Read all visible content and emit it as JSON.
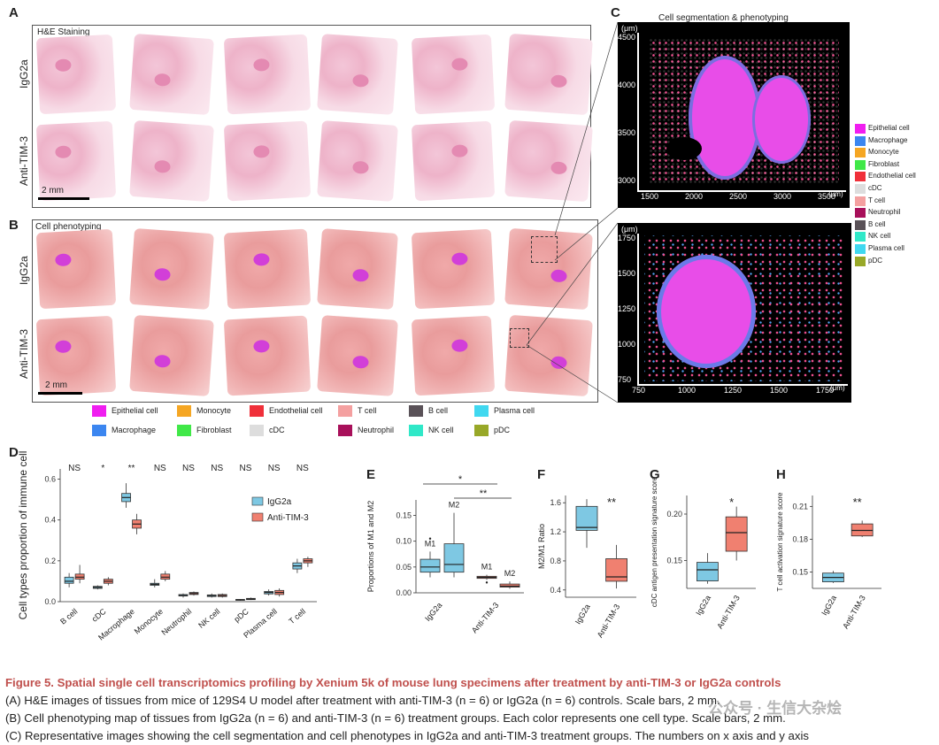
{
  "panels": {
    "A": {
      "label": "A",
      "title": "H&E Staining",
      "rows": [
        "IgG2a",
        "Anti-TIM-3"
      ],
      "scale": "2 mm"
    },
    "B": {
      "label": "B",
      "title": "Cell phenotyping",
      "rows": [
        "IgG2a",
        "Anti-TIM-3"
      ],
      "scale": "2 mm"
    },
    "C": {
      "label": "C",
      "title": "Cell segmentation & phenotyping",
      "top": {
        "unit": "(μm)",
        "xunit": "(μm)",
        "yticks": [
          "4500",
          "4000",
          "3500",
          "3000"
        ],
        "xticks": [
          "1500",
          "2000",
          "2500",
          "3000",
          "3500"
        ]
      },
      "bottom": {
        "unit": "(μm)",
        "xunit": "(μm)",
        "yticks": [
          "1750",
          "1500",
          "1250",
          "1000",
          "750"
        ],
        "xticks": [
          "750",
          "1000",
          "1250",
          "1500",
          "1750"
        ]
      },
      "legend": [
        "Epithelial cell",
        "Macrophage",
        "Monocyte",
        "Fibroblast",
        "Endothelial cell",
        "cDC",
        "T cell",
        "Neutrophil",
        "B cell",
        "NK cell",
        "Plasma cell",
        "pDC"
      ]
    },
    "D": {
      "label": "D"
    },
    "E": {
      "label": "E"
    },
    "F": {
      "label": "F"
    },
    "G": {
      "label": "G"
    },
    "H": {
      "label": "H"
    }
  },
  "cell_legend": [
    {
      "name": "Epithelial cell",
      "color": "#f01ef0"
    },
    {
      "name": "Monocyte",
      "color": "#f5a623"
    },
    {
      "name": "Endothelial cell",
      "color": "#f0303a"
    },
    {
      "name": "T cell",
      "color": "#f4a0a0"
    },
    {
      "name": "B cell",
      "color": "#5a5258"
    },
    {
      "name": "Plasma cell",
      "color": "#40d8f0"
    },
    {
      "name": "Macrophage",
      "color": "#3b86f0"
    },
    {
      "name": "Fibroblast",
      "color": "#40e848"
    },
    {
      "name": "cDC",
      "color": "#dddddd"
    },
    {
      "name": "Neutrophil",
      "color": "#a8105a"
    },
    {
      "name": "NK cell",
      "color": "#30e8c8"
    },
    {
      "name": "pDC",
      "color": "#98a828"
    }
  ],
  "colors": {
    "igg2a": "#7ec8e3",
    "anti": "#f08070",
    "caption_title": "#c0504d"
  },
  "chart_data": [
    {
      "panel": "D",
      "type": "box",
      "ylabel": "Cell types proportion of immune cell",
      "ylim": [
        0,
        0.65
      ],
      "yticks": [
        "0.0",
        "0.2",
        "0.4",
        "0.6"
      ],
      "categories": [
        "B cell",
        "cDC",
        "Macrophage",
        "Monocyte",
        "Neutrophil",
        "NK cell",
        "pDC",
        "Plasma cell",
        "T cell"
      ],
      "significance": [
        "NS",
        "*",
        "**",
        "NS",
        "NS",
        "NS",
        "NS",
        "NS",
        "NS"
      ],
      "legend": [
        "IgG2a",
        "Anti-TIM-3"
      ],
      "series": [
        {
          "name": "IgG2a",
          "boxes": [
            [
              0.07,
              0.09,
              0.1,
              0.12,
              0.14
            ],
            [
              0.06,
              0.065,
              0.07,
              0.075,
              0.08
            ],
            [
              0.46,
              0.49,
              0.51,
              0.53,
              0.58
            ],
            [
              0.07,
              0.08,
              0.085,
              0.09,
              0.11
            ],
            [
              0.02,
              0.028,
              0.03,
              0.035,
              0.04
            ],
            [
              0.02,
              0.025,
              0.03,
              0.033,
              0.04
            ],
            [
              0.005,
              0.007,
              0.009,
              0.011,
              0.013
            ],
            [
              0.03,
              0.038,
              0.045,
              0.05,
              0.06
            ],
            [
              0.14,
              0.16,
              0.175,
              0.19,
              0.21
            ]
          ]
        },
        {
          "name": "Anti-TIM-3",
          "boxes": [
            [
              0.09,
              0.11,
              0.12,
              0.135,
              0.18
            ],
            [
              0.08,
              0.09,
              0.1,
              0.11,
              0.12
            ],
            [
              0.33,
              0.36,
              0.38,
              0.4,
              0.43
            ],
            [
              0.1,
              0.11,
              0.12,
              0.135,
              0.15
            ],
            [
              0.03,
              0.035,
              0.04,
              0.045,
              0.05
            ],
            [
              0.02,
              0.025,
              0.03,
              0.035,
              0.04
            ],
            [
              0.008,
              0.01,
              0.013,
              0.016,
              0.02
            ],
            [
              0.025,
              0.035,
              0.045,
              0.055,
              0.065
            ],
            [
              0.17,
              0.19,
              0.2,
              0.21,
              0.22
            ]
          ]
        }
      ]
    },
    {
      "panel": "E",
      "type": "box",
      "ylabel": "Proportions of M1 and M2",
      "ylim": [
        0,
        0.18
      ],
      "yticks": [
        "0.00",
        "0.05",
        "0.10",
        "0.15"
      ],
      "categories": [
        "IgG2a",
        "Anti-TIM-3"
      ],
      "boxes": [
        {
          "group": "IgG2a",
          "type": "M1",
          "label": "M1",
          "stats": [
            0.03,
            0.04,
            0.05,
            0.065,
            0.08
          ],
          "outlier": 0.105
        },
        {
          "group": "IgG2a",
          "type": "M2",
          "label": "M2",
          "stats": [
            0.03,
            0.04,
            0.055,
            0.095,
            0.155
          ]
        },
        {
          "group": "Anti-TIM-3",
          "type": "M1",
          "label": "M1",
          "stats": [
            0.025,
            0.028,
            0.03,
            0.032,
            0.035
          ],
          "outlier": 0.02
        },
        {
          "group": "Anti-TIM-3",
          "type": "M2",
          "label": "M2",
          "stats": [
            0.008,
            0.011,
            0.013,
            0.017,
            0.022
          ]
        }
      ],
      "significance": [
        "*",
        "**"
      ]
    },
    {
      "panel": "F",
      "type": "box",
      "ylabel": "M2/M1 Ratio",
      "ylim": [
        0.3,
        1.7
      ],
      "yticks": [
        "0.4",
        "0.8",
        "1.2",
        "1.6"
      ],
      "categories": [
        "IgG2a",
        "Anti-TIM-3"
      ],
      "boxes": [
        [
          0.98,
          1.22,
          1.26,
          1.55,
          1.65
        ],
        [
          0.42,
          0.52,
          0.58,
          0.83,
          1.02
        ]
      ],
      "significance": "**"
    },
    {
      "panel": "G",
      "type": "box",
      "ylabel": "cDC antigen presentation signature score",
      "ylim": [
        0.12,
        0.22
      ],
      "yticks": [
        "0.15",
        "0.20"
      ],
      "categories": [
        "IgG2a",
        "Anti-TIM-3"
      ],
      "boxes": [
        [
          0.125,
          0.128,
          0.14,
          0.148,
          0.158
        ],
        [
          0.15,
          0.16,
          0.18,
          0.197,
          0.208
        ]
      ],
      "significance": "*"
    },
    {
      "panel": "H",
      "type": "box",
      "ylabel": "T cell activation signature score",
      "ylim": [
        0.135,
        0.22
      ],
      "yticks": [
        "0.15",
        "0.18",
        "0.21"
      ],
      "categories": [
        "IgG2a",
        "Anti-TIM-3"
      ],
      "boxes": [
        [
          0.14,
          0.141,
          0.145,
          0.149,
          0.151
        ],
        [
          0.182,
          0.183,
          0.188,
          0.194,
          0.197
        ]
      ],
      "significance": "**"
    }
  ],
  "caption": {
    "title": "Figure 5.  Spatial single cell transcriptomics profiling by Xenium 5k of mouse lung specimens after treatment by anti-TIM-3 or IgG2a controls",
    "lines": [
      "(A) H&E images of tissues from mice of 129S4 U model after treatment with anti-TIM-3 (n = 6) or IgG2a (n = 6) controls. Scale bars, 2 mm.",
      "(B) Cell phenotyping map of tissues from IgG2a (n = 6) and anti-TIM-3 (n = 6) treatment groups. Each color represents one cell type. Scale bars, 2 mm.",
      "(C) Representative images showing the cell segmentation and cell phenotypes in IgG2a and anti-TIM-3 treatment groups. The numbers on x axis and y axis"
    ]
  },
  "watermark": "公众号 · 生信大杂烩"
}
